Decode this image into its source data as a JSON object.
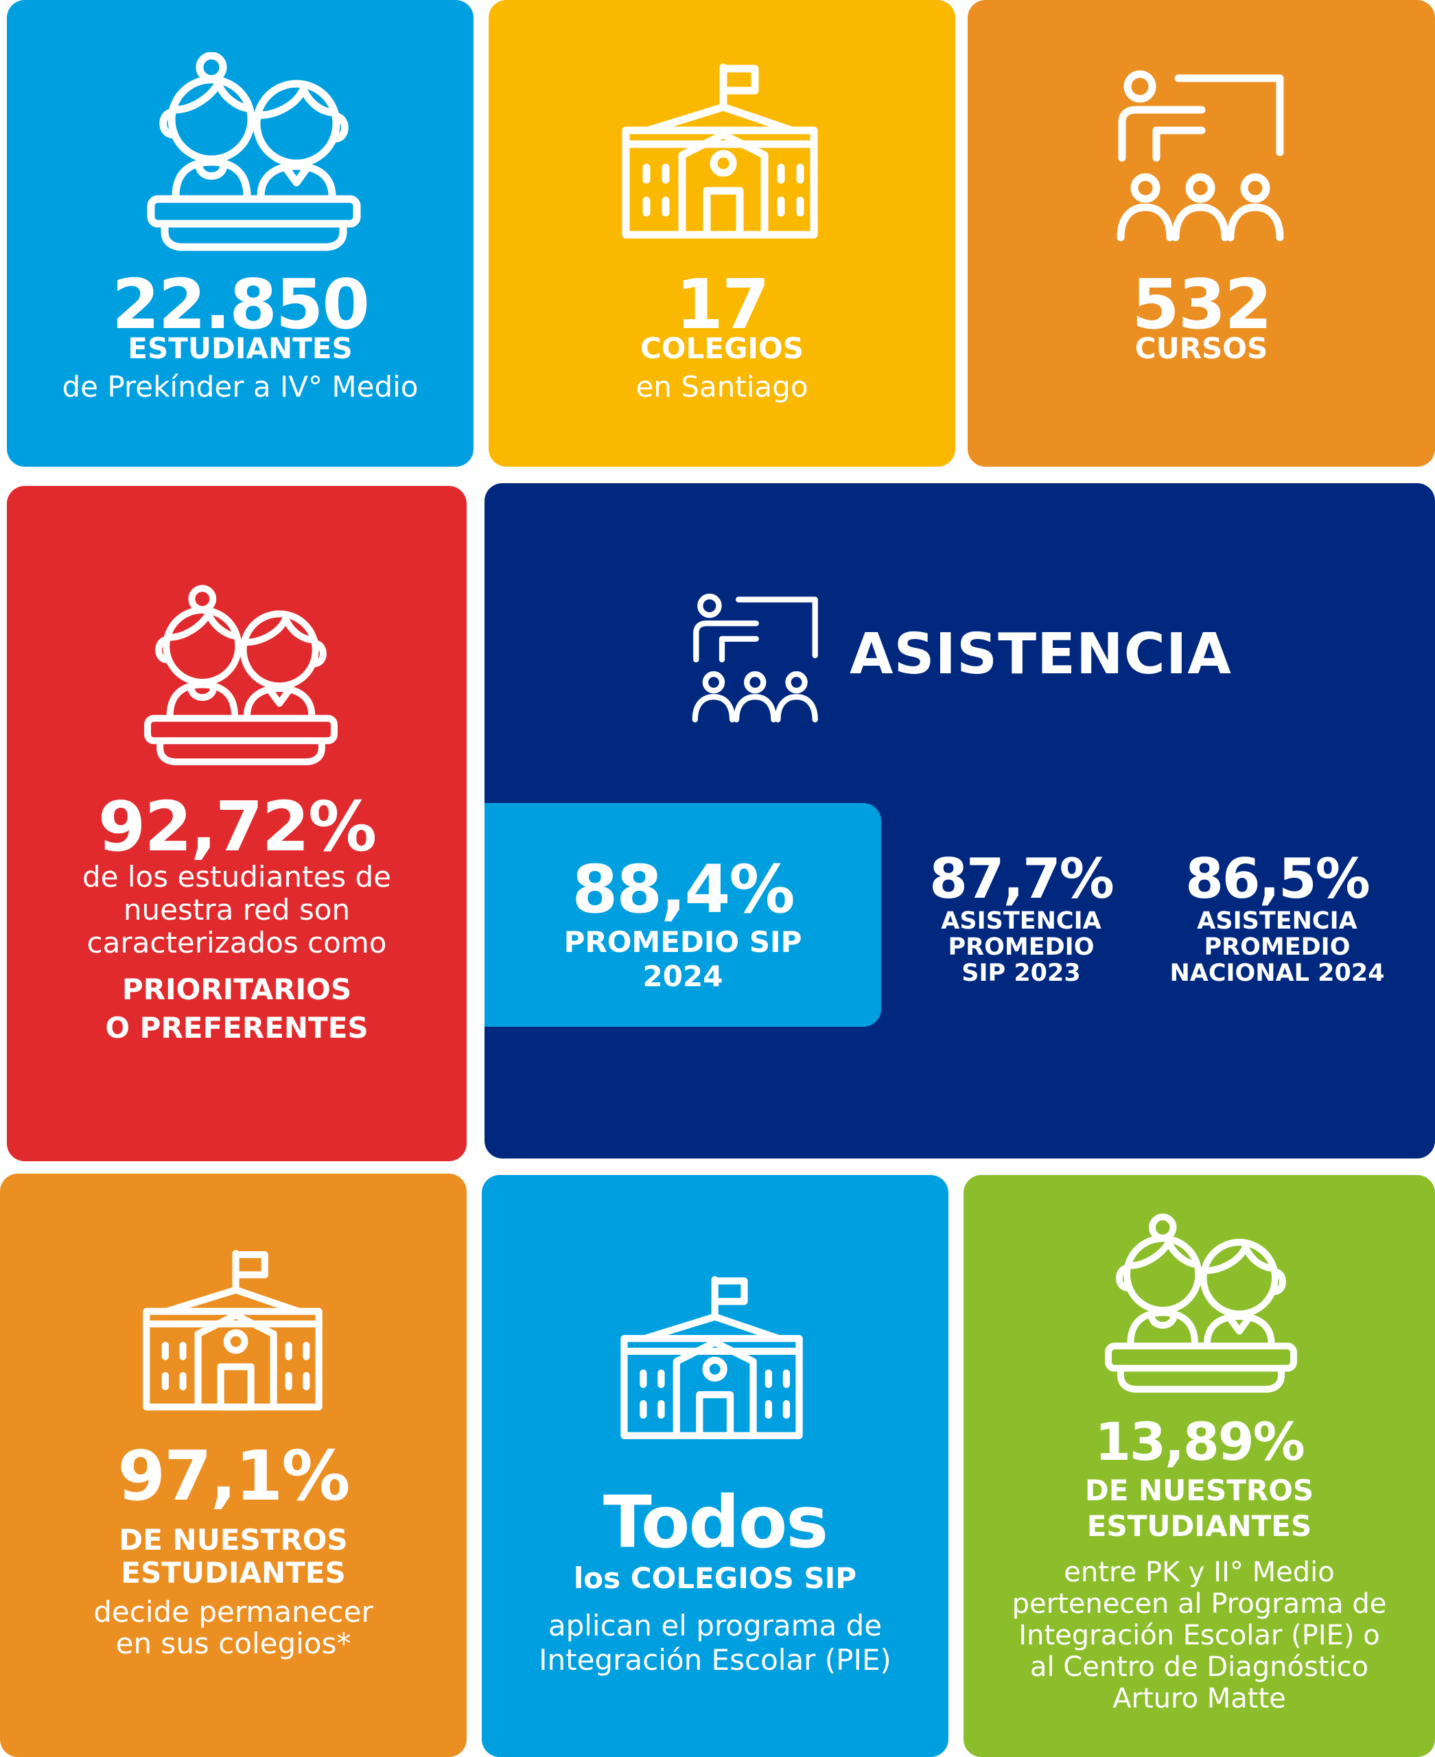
{
  "colors": {
    "blue": "#009fe0",
    "yellow": "#fbb800",
    "orange": "#ec8f23",
    "red": "#e12a2d",
    "navy": "#00287f",
    "green": "#8cbe2c"
  },
  "icons": [
    "students-icon",
    "school-icon",
    "classroom-icon"
  ],
  "estudiantes": {
    "value": "22.850",
    "label": "ESTUDIANTES",
    "sub": "de Prekínder a IV° Medio"
  },
  "colegios": {
    "value": "17",
    "label": "COLEGIOS",
    "sub": "en Santiago"
  },
  "cursos": {
    "value": "532",
    "label": "CURSOS"
  },
  "prioritarios": {
    "value": "92,72%",
    "text": [
      "de los estudiantes de",
      "nuestra red son",
      "caracterizados como"
    ],
    "caps": [
      "PRIORITARIOS",
      "O PREFERENTES"
    ]
  },
  "asistencia": {
    "title": "ASISTENCIA",
    "highlight": {
      "value": "88,4%",
      "label": [
        "PROMEDIO SIP",
        "2024"
      ]
    },
    "items": [
      {
        "value": "87,7%",
        "label": [
          "ASISTENCIA",
          "PROMEDIO",
          "SIP 2023"
        ]
      },
      {
        "value": "86,5%",
        "label": [
          "ASISTENCIA",
          "PROMEDIO",
          "NACIONAL 2024"
        ]
      }
    ]
  },
  "permanencia": {
    "value": "97,1%",
    "caps": [
      "DE NUESTROS",
      "ESTUDIANTES"
    ],
    "text": [
      "decide permanecer",
      "en sus colegios*"
    ]
  },
  "pie_colegios": {
    "value": "Todos",
    "caps_lower": "los",
    "caps": "COLEGIOS SIP",
    "text": [
      "aplican el programa de",
      "Integración Escolar (PIE)"
    ]
  },
  "pie_estudiantes": {
    "value": "13,89%",
    "caps": [
      "DE NUESTROS",
      "ESTUDIANTES"
    ],
    "text": [
      "entre PK y II° Medio",
      "pertenecen al Programa de",
      "Integración Escolar (PIE) o",
      "al Centro de Diagnóstico",
      "Arturo Matte"
    ]
  }
}
